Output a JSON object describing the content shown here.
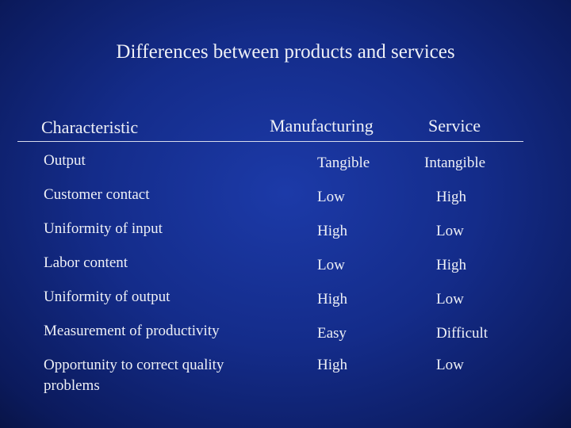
{
  "title": "Differences between products and services",
  "table": {
    "header": [
      "Characteristic",
      "Manufacturing",
      "Service"
    ],
    "rows": [
      [
        "Output",
        "Tangible",
        "Intangible"
      ],
      [
        "Customer contact",
        "Low",
        "High"
      ],
      [
        "Uniformity of input",
        "High",
        "Low"
      ],
      [
        "Labor content",
        "Low",
        "High"
      ],
      [
        "Uniformity of output",
        "High",
        "Low"
      ],
      [
        "Measurement of productivity",
        "Easy",
        "Difficult"
      ],
      [
        "Opportunity to correct quality problems",
        "High",
        "Low"
      ]
    ]
  }
}
